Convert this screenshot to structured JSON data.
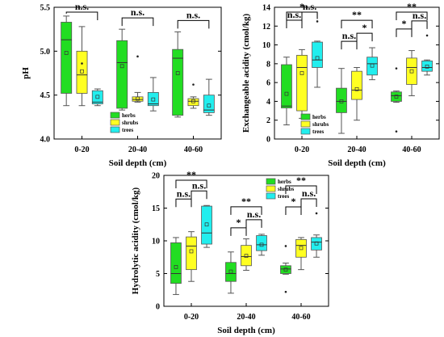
{
  "colors": {
    "herbs": "#22dd22",
    "shrubs": "#ffff22",
    "trees": "#22eeee",
    "frame": "#000000"
  },
  "chart_data": [
    {
      "type": "box",
      "xlabel": "Soil depth (cm)",
      "ylabel": "pH",
      "categories": [
        "0-20",
        "20-40",
        "40-60"
      ],
      "ylim": [
        4.0,
        5.5
      ],
      "yticks": [
        4.0,
        4.5,
        5.0,
        5.5
      ],
      "legend": {
        "position": "bottom-left-center",
        "entries": [
          "herbs",
          "shrubs",
          "trees"
        ]
      },
      "series": [
        {
          "name": "herbs",
          "boxes": [
            {
              "min": 4.38,
              "q1": 4.52,
              "median": 5.13,
              "q3": 5.33,
              "max": 5.4,
              "mean": 4.98,
              "outliers": []
            },
            {
              "min": 4.33,
              "q1": 4.35,
              "median": 4.87,
              "q3": 5.12,
              "max": 5.25,
              "mean": 4.83,
              "outliers": []
            },
            {
              "min": 4.25,
              "q1": 4.27,
              "median": 4.92,
              "q3": 5.02,
              "max": 5.22,
              "mean": 4.75,
              "outliers": []
            }
          ]
        },
        {
          "name": "shrubs",
          "boxes": [
            {
              "min": 4.38,
              "q1": 4.52,
              "median": 4.73,
              "q3": 5.0,
              "max": 5.28,
              "mean": 4.77,
              "outliers": [
                4.86
              ]
            },
            {
              "min": 4.42,
              "q1": 4.43,
              "median": 4.45,
              "q3": 4.48,
              "max": 4.53,
              "mean": 4.46,
              "outliers": [
                4.94
              ]
            },
            {
              "min": 4.35,
              "q1": 4.38,
              "median": 4.43,
              "q3": 4.46,
              "max": 4.48,
              "mean": 4.43,
              "outliers": [
                4.62
              ]
            }
          ]
        },
        {
          "name": "trees",
          "boxes": [
            {
              "min": 4.38,
              "q1": 4.4,
              "median": 4.42,
              "q3": 4.55,
              "max": 4.57,
              "mean": 4.48,
              "outliers": []
            },
            {
              "min": 4.32,
              "q1": 4.38,
              "median": 4.4,
              "q3": 4.53,
              "max": 4.7,
              "mean": 4.45,
              "outliers": []
            },
            {
              "min": 4.27,
              "q1": 4.3,
              "median": 4.33,
              "q3": 4.5,
              "max": 4.68,
              "mean": 4.38,
              "outliers": []
            }
          ]
        }
      ],
      "annotations": [
        {
          "text": "n.s.",
          "from": 0,
          "to": 2,
          "group": 0
        },
        {
          "text": "n.s.",
          "from": 0,
          "to": 2,
          "group": 1
        },
        {
          "text": "n.s.",
          "from": 0,
          "to": 2,
          "group": 2
        }
      ]
    },
    {
      "type": "box",
      "xlabel": "Soil depth (cm)",
      "ylabel": "Exchangeable acidity (cmol/kg)",
      "categories": [
        "0-20",
        "20-40",
        "40-60"
      ],
      "ylim": [
        0,
        14
      ],
      "yticks": [
        0,
        2,
        4,
        6,
        8,
        10,
        12,
        14
      ],
      "legend": {
        "position": "middle-right",
        "entries": [
          "herbs",
          "shrubs",
          "trees"
        ]
      },
      "series": [
        {
          "name": "herbs",
          "boxes": [
            {
              "min": 1.5,
              "q1": 3.3,
              "median": 3.5,
              "q3": 7.9,
              "max": 8.7,
              "mean": 4.8,
              "outliers": []
            },
            {
              "min": 0.6,
              "q1": 2.8,
              "median": 4.0,
              "q3": 5.4,
              "max": 7.5,
              "mean": 4.0,
              "outliers": []
            },
            {
              "min": 3.9,
              "q1": 4.0,
              "median": 4.6,
              "q3": 5.0,
              "max": 5.1,
              "mean": 4.5,
              "outliers": [
                0.8,
                7.5
              ]
            }
          ]
        },
        {
          "name": "shrubs",
          "boxes": [
            {
              "min": 2.2,
              "q1": 3.0,
              "median": 7.6,
              "q3": 8.9,
              "max": 9.5,
              "mean": 7.0,
              "outliers": []
            },
            {
              "min": 2.0,
              "q1": 4.2,
              "median": 5.2,
              "q3": 7.2,
              "max": 7.6,
              "mean": 5.3,
              "outliers": []
            },
            {
              "min": 4.6,
              "q1": 5.8,
              "median": 7.6,
              "q3": 8.6,
              "max": 9.4,
              "mean": 7.2,
              "outliers": []
            }
          ]
        },
        {
          "name": "trees",
          "boxes": [
            {
              "min": 5.5,
              "q1": 7.6,
              "median": 8.4,
              "q3": 10.3,
              "max": 10.4,
              "mean": 8.6,
              "outliers": [
                12.5
              ]
            },
            {
              "min": 6.3,
              "q1": 6.8,
              "median": 8.0,
              "q3": 8.7,
              "max": 9.7,
              "mean": 7.8,
              "outliers": []
            },
            {
              "min": 6.8,
              "q1": 7.2,
              "median": 7.6,
              "q3": 8.3,
              "max": 8.4,
              "mean": 7.7,
              "outliers": [
                11.0
              ]
            }
          ]
        }
      ],
      "annotations": [
        {
          "text": "*",
          "from": 0,
          "to": 2,
          "group": 0
        },
        {
          "text": "n.s.",
          "from": 0,
          "to": 1,
          "group": 0
        },
        {
          "text": "n.s.",
          "from": 1,
          "to": 2,
          "group": 0
        },
        {
          "text": "**",
          "from": 0,
          "to": 2,
          "group": 1
        },
        {
          "text": "n.s.",
          "from": 0,
          "to": 1,
          "group": 1
        },
        {
          "text": "*",
          "from": 1,
          "to": 2,
          "group": 1
        },
        {
          "text": "**",
          "from": 0,
          "to": 2,
          "group": 2
        },
        {
          "text": "*",
          "from": 0,
          "to": 1,
          "group": 2
        },
        {
          "text": "n.s.",
          "from": 1,
          "to": 2,
          "group": 2
        }
      ]
    },
    {
      "type": "box",
      "xlabel": "Soil depth (cm)",
      "ylabel": "Hydrolytic acidity (cmol/kg)",
      "categories": [
        "0-20",
        "20-40",
        "40-60"
      ],
      "ylim": [
        0,
        20
      ],
      "yticks": [
        0,
        5,
        10,
        15,
        20
      ],
      "legend": {
        "position": "top-right",
        "entries": [
          "herbs",
          "shrubs",
          "trees"
        ]
      },
      "series": [
        {
          "name": "herbs",
          "boxes": [
            {
              "min": 1.8,
              "q1": 3.5,
              "median": 5.0,
              "q3": 9.7,
              "max": 10.5,
              "mean": 6.0,
              "outliers": []
            },
            {
              "min": 2.0,
              "q1": 3.8,
              "median": 5.0,
              "q3": 6.7,
              "max": 8.3,
              "mean": 5.3,
              "outliers": []
            },
            {
              "min": 4.9,
              "q1": 5.0,
              "median": 5.7,
              "q3": 6.2,
              "max": 6.6,
              "mean": 5.6,
              "outliers": [
                2.2,
                9.2
              ]
            }
          ]
        },
        {
          "name": "shrubs",
          "boxes": [
            {
              "min": 3.8,
              "q1": 5.6,
              "median": 9.2,
              "q3": 10.6,
              "max": 11.4,
              "mean": 8.4,
              "outliers": []
            },
            {
              "min": 5.5,
              "q1": 6.2,
              "median": 7.6,
              "q3": 9.3,
              "max": 10.3,
              "mean": 7.7,
              "outliers": []
            },
            {
              "min": 5.6,
              "q1": 7.5,
              "median": 9.3,
              "q3": 10.2,
              "max": 10.5,
              "mean": 8.9,
              "outliers": []
            }
          ]
        },
        {
          "name": "trees",
          "boxes": [
            {
              "min": 9.0,
              "q1": 9.5,
              "median": 11.2,
              "q3": 15.3,
              "max": 15.4,
              "mean": 12.5,
              "outliers": []
            },
            {
              "min": 7.8,
              "q1": 8.5,
              "median": 9.4,
              "q3": 10.8,
              "max": 11.0,
              "mean": 9.4,
              "outliers": []
            },
            {
              "min": 7.5,
              "q1": 8.6,
              "median": 9.8,
              "q3": 10.5,
              "max": 10.9,
              "mean": 9.6,
              "outliers": [
                14.2
              ]
            }
          ]
        }
      ],
      "annotations": [
        {
          "text": "**",
          "from": 0,
          "to": 2,
          "group": 0
        },
        {
          "text": "n.s.",
          "from": 0,
          "to": 1,
          "group": 0
        },
        {
          "text": "n.s.",
          "from": 1,
          "to": 2,
          "group": 0
        },
        {
          "text": "**",
          "from": 0,
          "to": 2,
          "group": 1
        },
        {
          "text": "*",
          "from": 0,
          "to": 1,
          "group": 1
        },
        {
          "text": "n.s.",
          "from": 1,
          "to": 2,
          "group": 1
        },
        {
          "text": "**",
          "from": 0,
          "to": 2,
          "group": 2
        },
        {
          "text": "*",
          "from": 0,
          "to": 1,
          "group": 2
        },
        {
          "text": "n.s.",
          "from": 1,
          "to": 2,
          "group": 2
        }
      ]
    }
  ]
}
